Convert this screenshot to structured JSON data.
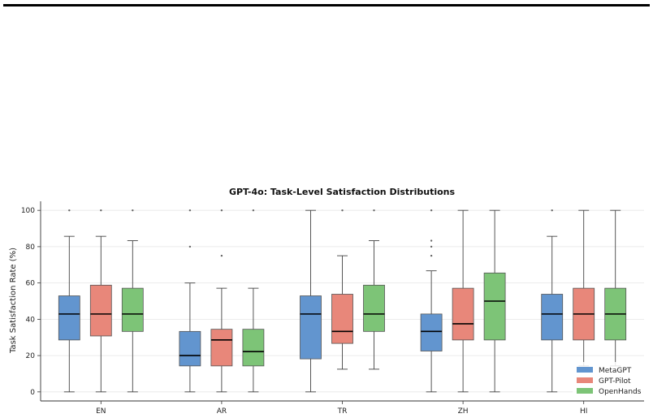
{
  "chart_data": {
    "type": "box",
    "title": "GPT-4o: Task-Level Satisfaction Distributions",
    "xlabel": "",
    "ylabel": "Task Satisfaction Rate (%)",
    "ylim": [
      -5,
      105
    ],
    "yticks": [
      0,
      20,
      40,
      60,
      80,
      100
    ],
    "grid": true,
    "legend_position": "bottom-right",
    "categories": [
      "EN",
      "AR",
      "TR",
      "ZH",
      "HI"
    ],
    "series": [
      {
        "name": "MetaGPT",
        "color": "#6295cf",
        "boxes": [
          {
            "min": 0,
            "q1": 28.6,
            "median": 42.9,
            "q3": 52.9,
            "max": 85.7,
            "outliers": [
              100
            ]
          },
          {
            "min": 0,
            "q1": 14.3,
            "median": 20,
            "q3": 33.3,
            "max": 60,
            "outliers": [
              80,
              100
            ]
          },
          {
            "min": 0,
            "q1": 18.2,
            "median": 42.9,
            "q3": 52.9,
            "max": 100,
            "outliers": []
          },
          {
            "min": 0,
            "q1": 22.5,
            "median": 33.3,
            "q3": 42.9,
            "max": 66.7,
            "outliers": [
              75,
              80,
              83.3,
              100
            ]
          },
          {
            "min": 0,
            "q1": 28.6,
            "median": 42.9,
            "q3": 53.8,
            "max": 85.7,
            "outliers": [
              100
            ]
          }
        ]
      },
      {
        "name": "GPT-Pilot",
        "color": "#e8877a",
        "boxes": [
          {
            "min": 0,
            "q1": 30.8,
            "median": 42.9,
            "q3": 58.8,
            "max": 85.7,
            "outliers": [
              100
            ]
          },
          {
            "min": 0,
            "q1": 14.3,
            "median": 28.6,
            "q3": 34.5,
            "max": 57.1,
            "outliers": [
              75,
              100
            ]
          },
          {
            "min": 12.5,
            "q1": 26.7,
            "median": 33.3,
            "q3": 53.8,
            "max": 75,
            "outliers": [
              100
            ]
          },
          {
            "min": 0,
            "q1": 28.6,
            "median": 37.5,
            "q3": 57.1,
            "max": 100,
            "outliers": []
          },
          {
            "min": 14.3,
            "q1": 28.6,
            "median": 42.9,
            "q3": 57.1,
            "max": 100,
            "outliers": []
          }
        ]
      },
      {
        "name": "OpenHands",
        "color": "#7dc477",
        "boxes": [
          {
            "min": 0,
            "q1": 33.3,
            "median": 42.9,
            "q3": 57.1,
            "max": 83.3,
            "outliers": [
              100
            ]
          },
          {
            "min": 0,
            "q1": 14.3,
            "median": 22.2,
            "q3": 34.5,
            "max": 57.1,
            "outliers": [
              100
            ]
          },
          {
            "min": 12.5,
            "q1": 33.3,
            "median": 42.9,
            "q3": 58.8,
            "max": 83.3,
            "outliers": [
              100
            ]
          },
          {
            "min": 0,
            "q1": 28.6,
            "median": 50,
            "q3": 65.5,
            "max": 100,
            "outliers": []
          },
          {
            "min": 14.3,
            "q1": 28.6,
            "median": 42.9,
            "q3": 57.1,
            "max": 100,
            "outliers": []
          }
        ]
      }
    ]
  }
}
